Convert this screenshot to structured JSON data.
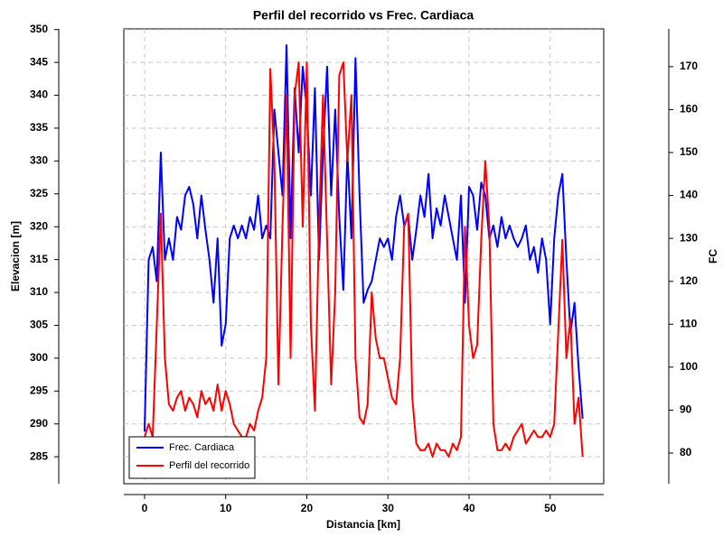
{
  "chart_data": {
    "type": "line",
    "title": "Perfil del recorrido vs Frec. Cardiaca",
    "x_label": "Distancia [km]",
    "y_label": "Elevacion [m]",
    "y2_label": "FC",
    "xlim": [
      -2.56,
      56.6
    ],
    "xticks": [
      0,
      10,
      20,
      30,
      40,
      50
    ],
    "ylim": [
      280.9,
      350.1
    ],
    "yticks": [
      285,
      290,
      295,
      300,
      305,
      310,
      315,
      320,
      325,
      330,
      335,
      340,
      345,
      350
    ],
    "y2lim": [
      72.85,
      178.8
    ],
    "y2ticks": [
      80,
      90,
      100,
      110,
      120,
      130,
      140,
      150,
      160,
      170
    ],
    "grid": true,
    "legend_position": "lower-left",
    "x": [
      0,
      0.5,
      1,
      1.5,
      2,
      2.5,
      3,
      3.5,
      4,
      4.5,
      5,
      5.5,
      6,
      6.5,
      7,
      7.5,
      8,
      8.5,
      9,
      9.5,
      10,
      10.5,
      11,
      11.5,
      12,
      12.5,
      13,
      13.5,
      14,
      14.5,
      15,
      15.5,
      16,
      16.5,
      17,
      17.5,
      18,
      18.5,
      19,
      19.5,
      20,
      20.5,
      21,
      21.5,
      22,
      22.5,
      23,
      23.5,
      24,
      24.5,
      25,
      25.5,
      26,
      26.5,
      27,
      27.5,
      28,
      28.5,
      29,
      29.5,
      30,
      30.5,
      31,
      31.5,
      32,
      32.5,
      33,
      33.5,
      34,
      34.5,
      35,
      35.5,
      36,
      36.5,
      37,
      37.5,
      38,
      38.5,
      39,
      39.5,
      40,
      40.5,
      41,
      41.5,
      42,
      42.5,
      43,
      43.5,
      44,
      44.5,
      45,
      45.5,
      46,
      46.5,
      47,
      47.5,
      48,
      48.5,
      49,
      49.5,
      50,
      50.5,
      51,
      51.5,
      52,
      52.5,
      53,
      53.5,
      54
    ],
    "series": [
      {
        "name": "Frec. Cardiaca",
        "color": "#0000ff",
        "axis": "y2",
        "values": [
          85,
          125,
          128,
          120,
          150,
          125,
          130,
          125,
          135,
          132,
          140,
          142,
          138,
          130,
          140,
          132,
          125,
          115,
          130,
          105,
          110,
          130,
          133,
          130,
          133,
          130,
          135,
          132,
          140,
          130,
          133,
          130,
          160,
          150,
          140,
          175,
          130,
          165,
          150,
          170,
          160,
          140,
          165,
          125,
          150,
          170,
          140,
          160,
          135,
          118,
          150,
          130,
          172,
          140,
          115,
          118,
          120,
          125,
          130,
          128,
          130,
          125,
          135,
          140,
          133,
          135,
          125,
          132,
          140,
          135,
          145,
          130,
          137,
          133,
          140,
          135,
          130,
          125,
          140,
          115,
          142,
          140,
          132,
          143,
          140,
          130,
          133,
          128,
          135,
          130,
          133,
          130,
          128,
          130,
          133,
          125,
          128,
          122,
          130,
          125,
          110,
          130,
          140,
          145,
          125,
          108,
          115,
          100,
          88
        ]
      },
      {
        "name": "Perfil del recorrido",
        "color": "#ff0000",
        "values": [
          288,
          290,
          288,
          305,
          322,
          300,
          293,
          292,
          294,
          295,
          292,
          294,
          293,
          291,
          295,
          293,
          294,
          292,
          296,
          292,
          295,
          293,
          290,
          289,
          288,
          288,
          290,
          289,
          292,
          294,
          300,
          344,
          330,
          296,
          320,
          340,
          300,
          340,
          345,
          320,
          345,
          305,
          292,
          320,
          340,
          318,
          296,
          310,
          343,
          345,
          330,
          340,
          300,
          291,
          290,
          293,
          310,
          303,
          300,
          300,
          297,
          294,
          293,
          300,
          320,
          322,
          294,
          287,
          286,
          286,
          287,
          285,
          287,
          286,
          286,
          285,
          287,
          286,
          288,
          320,
          305,
          300,
          302,
          318,
          330,
          320,
          290,
          286,
          286,
          287,
          286,
          288,
          289,
          290,
          287,
          288,
          289,
          288,
          288,
          289,
          288,
          290,
          304,
          318,
          300,
          306,
          290,
          294,
          285
        ]
      }
    ]
  }
}
